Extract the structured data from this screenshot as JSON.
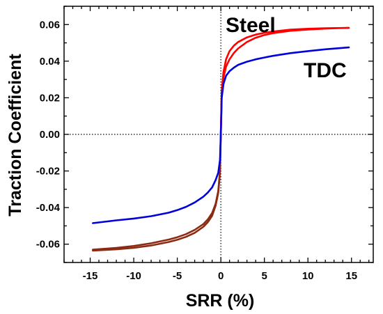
{
  "chart_data": {
    "type": "line",
    "title": "",
    "xlabel": "SRR (%)",
    "ylabel": "Traction Coefficient",
    "xlim": [
      -18,
      17.5
    ],
    "ylim": [
      -0.07,
      0.07
    ],
    "x_ticks": [
      "-15",
      "-10",
      "-5",
      "0",
      "5",
      "10",
      "15"
    ],
    "y_ticks": [
      "-0.06",
      "-0.04",
      "-0.02",
      "0.00",
      "0.02",
      "0.04",
      "0.06"
    ],
    "reference_lines": {
      "x": 0,
      "y": 0,
      "style": "dotted"
    },
    "series": [
      {
        "name": "Steel",
        "color": "#ff0000",
        "negative_color": "#8b2b12",
        "curves": [
          {
            "x": [
              -14.7,
              -12,
              -10,
              -8,
              -6,
              -5,
              -4,
              -3,
              -2,
              -1.5,
              -1,
              -0.6,
              -0.3,
              -0.1,
              0,
              0.1,
              0.3,
              0.6,
              1,
              1.5,
              2,
              3,
              4,
              5,
              6,
              8,
              10,
              12,
              14.7
            ],
            "y": [
              -0.063,
              -0.062,
              -0.061,
              -0.0595,
              -0.0575,
              -0.0562,
              -0.0545,
              -0.0522,
              -0.049,
              -0.0465,
              -0.043,
              -0.038,
              -0.031,
              -0.02,
              0,
              0.024,
              0.034,
              0.041,
              0.0455,
              0.0485,
              0.0505,
              0.053,
              0.0545,
              0.0555,
              0.0562,
              0.0572,
              0.0577,
              0.058,
              0.0582
            ]
          },
          {
            "x": [
              -14.7,
              -12,
              -10,
              -8,
              -6,
              -5,
              -4,
              -3,
              -2,
              -1.5,
              -1,
              -0.6,
              -0.3,
              -0.1,
              0,
              0.1,
              0.3,
              0.6,
              1,
              1.5,
              2,
              3,
              4,
              5,
              6,
              8,
              10,
              12,
              14.7
            ],
            "y": [
              -0.0635,
              -0.0628,
              -0.062,
              -0.0607,
              -0.0588,
              -0.0576,
              -0.056,
              -0.0538,
              -0.0505,
              -0.048,
              -0.0445,
              -0.039,
              -0.032,
              -0.021,
              0,
              0.022,
              0.031,
              0.037,
              0.041,
              0.0445,
              0.047,
              0.0505,
              0.0528,
              0.0543,
              0.0553,
              0.0566,
              0.0573,
              0.0578,
              0.0582
            ]
          }
        ]
      },
      {
        "name": "TDC",
        "color": "#0000dd",
        "negative_color": "#0000dd",
        "curves": [
          {
            "x": [
              -14.7,
              -12,
              -10,
              -8,
              -6,
              -5,
              -4,
              -3,
              -2,
              -1.5,
              -1,
              -0.6,
              -0.3,
              -0.1,
              0,
              0.1,
              0.3,
              0.6,
              1,
              1.5,
              2,
              3,
              4,
              5,
              6,
              8,
              10,
              12,
              14.7
            ],
            "y": [
              -0.0485,
              -0.047,
              -0.046,
              -0.0447,
              -0.0428,
              -0.0414,
              -0.0396,
              -0.0372,
              -0.034,
              -0.0318,
              -0.029,
              -0.025,
              -0.021,
              -0.014,
              0,
              0.02,
              0.0275,
              0.032,
              0.0345,
              0.0365,
              0.038,
              0.0397,
              0.041,
              0.042,
              0.0429,
              0.0444,
              0.0455,
              0.0465,
              0.0475
            ]
          }
        ]
      }
    ]
  }
}
